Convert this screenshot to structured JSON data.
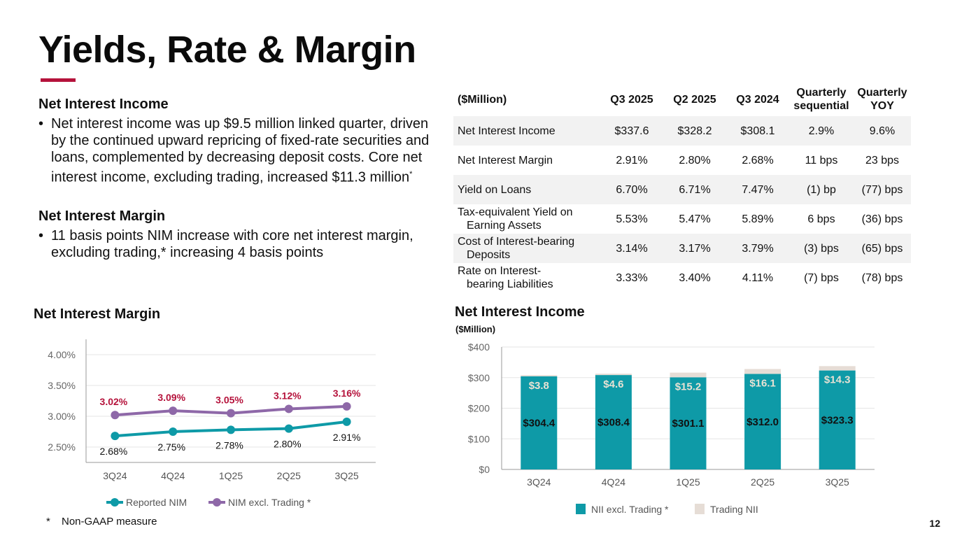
{
  "page": {
    "title": "Yields, Rate & Margin",
    "accent_color": "#b5123b",
    "page_number": "12",
    "footnote_star": "*",
    "footnote": "Non-GAAP measure"
  },
  "summary": {
    "nii_heading": "Net Interest Income",
    "nii_bullet": "Net interest income was up $9.5 million linked quarter, driven by the continued upward repricing of fixed-rate securities and loans, complemented by decreasing deposit costs. Core net interest income, excluding trading, increased $11.3 million",
    "nii_bullet_sup": "*",
    "nim_heading": "Net Interest Margin",
    "nim_bullet": "11 basis points NIM increase with core net interest margin, excluding trading,* increasing 4 basis points",
    "bullet_char": "•"
  },
  "metrics_table": {
    "headers": [
      "($Million)",
      "Q3 2025",
      "Q2 2025",
      "Q3 2024",
      "Quarterly sequential",
      "Quarterly YOY"
    ],
    "rows": [
      {
        "label": "Net Interest Income",
        "label2": "",
        "values": [
          "$337.6",
          "$328.2",
          "$308.1",
          "2.9%",
          "9.6%"
        ]
      },
      {
        "label": "Net Interest Margin",
        "label2": "",
        "values": [
          "2.91%",
          "2.80%",
          "2.68%",
          "11 bps",
          "23 bps"
        ]
      },
      {
        "label": "Yield on Loans",
        "label2": "",
        "values": [
          "6.70%",
          "6.71%",
          "7.47%",
          "(1) bp",
          "(77) bps"
        ]
      },
      {
        "label": "Tax-equivalent Yield on",
        "label2": "Earning Assets",
        "values": [
          "5.53%",
          "5.47%",
          "5.89%",
          "6 bps",
          "(36) bps"
        ]
      },
      {
        "label": "Cost of Interest-bearing",
        "label2": "Deposits",
        "values": [
          "3.14%",
          "3.17%",
          "3.79%",
          "(3) bps",
          "(65) bps"
        ]
      },
      {
        "label": "Rate on Interest-",
        "label2": "bearing Liabilities",
        "values": [
          "3.33%",
          "3.40%",
          "4.11%",
          "(7) bps",
          "(78) bps"
        ]
      }
    ]
  },
  "chart_data": [
    {
      "type": "line",
      "title": "Net Interest Margin",
      "categories": [
        "3Q24",
        "4Q24",
        "1Q25",
        "2Q25",
        "3Q25"
      ],
      "ylim": [
        2.25,
        4.25
      ],
      "yticks": [
        2.5,
        3.0,
        3.5,
        4.0
      ],
      "ytick_labels": [
        "2.50%",
        "3.00%",
        "3.50%",
        "4.00%"
      ],
      "grid": true,
      "legend_position": "bottom",
      "series": [
        {
          "name": "Reported NIM",
          "color": "#0e9aa7",
          "values": [
            2.68,
            2.75,
            2.78,
            2.8,
            2.91
          ],
          "labels": [
            "2.68%",
            "2.75%",
            "2.78%",
            "2.80%",
            "2.91%"
          ],
          "label_color": "#111111",
          "label_position": "below"
        },
        {
          "name": "NIM excl. Trading *",
          "color": "#8e68a8",
          "values": [
            3.02,
            3.09,
            3.05,
            3.12,
            3.16
          ],
          "labels": [
            "3.02%",
            "3.09%",
            "3.05%",
            "3.12%",
            "3.16%"
          ],
          "label_color": "#b5123b",
          "label_position": "above"
        }
      ]
    },
    {
      "type": "bar",
      "stacked": true,
      "title": "Net Interest Income",
      "subtitle": "($Million)",
      "categories": [
        "3Q24",
        "4Q24",
        "1Q25",
        "2Q25",
        "3Q25"
      ],
      "ylim": [
        0,
        400
      ],
      "yticks": [
        0,
        100,
        200,
        300,
        400
      ],
      "ytick_labels": [
        "$0",
        "$100",
        "$200",
        "$300",
        "$400"
      ],
      "grid": true,
      "legend_position": "bottom",
      "series": [
        {
          "name": "NII excl. Trading *",
          "color": "#0e9aa7",
          "values": [
            304.4,
            308.4,
            301.1,
            312.0,
            323.3
          ],
          "labels": [
            "$304.4",
            "$308.4",
            "$301.1",
            "$312.0",
            "$323.3"
          ],
          "label_color": "#111111"
        },
        {
          "name": "Trading NII",
          "color": "#e6ddd6",
          "values": [
            3.8,
            4.6,
            15.2,
            16.1,
            14.3
          ],
          "labels": [
            "$3.8",
            "$4.6",
            "$15.2",
            "$16.1",
            "$14.3"
          ],
          "label_color": "#e8e2d4"
        }
      ]
    }
  ]
}
